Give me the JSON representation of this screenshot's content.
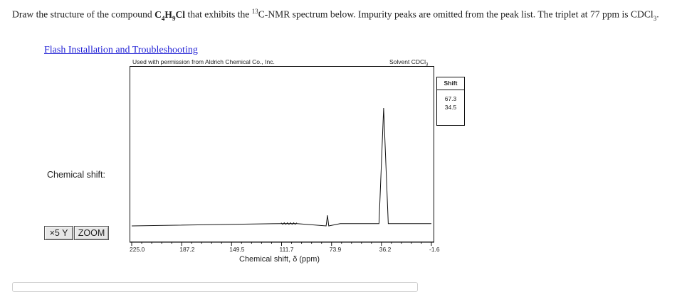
{
  "question": {
    "p1": "Draw the structure of the compound ",
    "f1": "C",
    "f1s": "4",
    "f2": "H",
    "f2s": "9",
    "f3": "Cl",
    "p2": " that exhibits the ",
    "sup": "13",
    "p3": "C-NMR spectrum below. Impurity peaks are omitted from the peak list. The triplet at 77 ppm is CDCl",
    "p3s": "3",
    "p4": "."
  },
  "link": "Flash Installation and Troubleshooting",
  "spectrum": {
    "permission": "Used with permission from Aldrich Chemical Co., Inc.",
    "solvent_prefix": "Solvent CDCl",
    "solvent_sub": "3",
    "axis_title": "Chemical shift, δ (ppm)",
    "ticks": [
      "225.0",
      "187.2",
      "149.5",
      "111.7",
      "73.9",
      "36.2",
      "-1.6"
    ]
  },
  "chemical_shift_label": "Chemical shift:",
  "buttons": {
    "x5y": "×5 Y",
    "zoom": "ZOOM"
  },
  "peak_table": {
    "header": "Shift",
    "values": [
      "67.3",
      "34.5"
    ]
  },
  "chart_data": {
    "type": "line",
    "xlabel": "Chemical shift, δ (ppm)",
    "xlim": [
      225.0,
      -1.6
    ],
    "x_ticks": [
      225.0,
      187.2,
      149.5,
      111.7,
      73.9,
      36.2,
      -1.6
    ],
    "series": [
      {
        "x": [
          225.0,
          112.0,
          111.7,
          105.0,
          100.0,
          78.0,
          77.0,
          76.0,
          67.3,
          60.0,
          38.0,
          34.5,
          31.0,
          5.0,
          -1.6
        ],
        "y": [
          0.0,
          0.02,
          0.02,
          0.02,
          0.02,
          0.0,
          0.09,
          0.0,
          0.02,
          0.02,
          0.02,
          1.0,
          0.02,
          0.02,
          0.02
        ]
      }
    ]
  }
}
